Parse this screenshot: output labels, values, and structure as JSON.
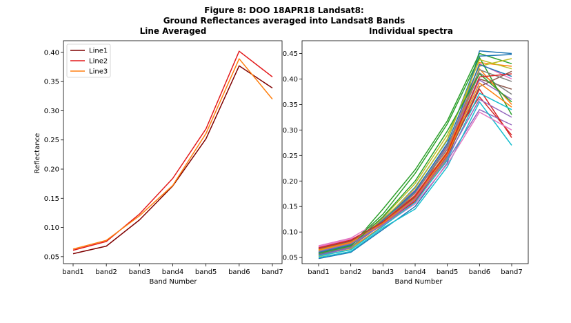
{
  "figure": {
    "title_line1": "Figure 8: DOO 18APR18  Landsat8:",
    "title_line2": "Ground Reflectances averaged into Landsat8 Bands"
  },
  "chart_data": [
    {
      "type": "line",
      "title": "Line Averaged",
      "xlabel": "Band Number",
      "ylabel": "Reflectance",
      "categories": [
        "band1",
        "band2",
        "band3",
        "band4",
        "band5",
        "band6",
        "band7"
      ],
      "ylim": [
        0.038,
        0.42
      ],
      "yticks": [
        0.05,
        0.1,
        0.15,
        0.2,
        0.25,
        0.3,
        0.35,
        0.4
      ],
      "ytick_labels": [
        "0.05",
        "0.10",
        "0.15",
        "0.20",
        "0.25",
        "0.30",
        "0.35",
        "0.40"
      ],
      "legend": "top-left",
      "grid": false,
      "series": [
        {
          "name": "Line1",
          "color": "#7f0000",
          "values": [
            0.055,
            0.068,
            0.113,
            0.171,
            0.252,
            0.377,
            0.339
          ]
        },
        {
          "name": "Line2",
          "color": "#e31a1c",
          "values": [
            0.061,
            0.076,
            0.123,
            0.184,
            0.269,
            0.402,
            0.358
          ]
        },
        {
          "name": "Line3",
          "color": "#ff7f0e",
          "values": [
            0.063,
            0.078,
            0.12,
            0.172,
            0.261,
            0.389,
            0.32
          ]
        }
      ]
    },
    {
      "type": "line",
      "title": "Individual spectra",
      "xlabel": "Band Number",
      "ylabel": "",
      "categories": [
        "band1",
        "band2",
        "band3",
        "band4",
        "band5",
        "band6",
        "band7"
      ],
      "ylim": [
        0.038,
        0.475
      ],
      "yticks": [
        0.05,
        0.1,
        0.15,
        0.2,
        0.25,
        0.3,
        0.35,
        0.4,
        0.45
      ],
      "ytick_labels": [
        "0.05",
        "0.10",
        "0.15",
        "0.20",
        "0.25",
        "0.30",
        "0.35",
        "0.40",
        "0.45"
      ],
      "legend": "none",
      "grid": false,
      "series": [
        {
          "color": "#1f77b4",
          "values": [
            0.048,
            0.06,
            0.105,
            0.15,
            0.235,
            0.455,
            0.45
          ]
        },
        {
          "color": "#ff7f0e",
          "values": [
            0.055,
            0.068,
            0.112,
            0.162,
            0.245,
            0.432,
            0.425
          ]
        },
        {
          "color": "#2ca02c",
          "values": [
            0.058,
            0.072,
            0.145,
            0.222,
            0.318,
            0.45,
            0.43
          ]
        },
        {
          "color": "#d62728",
          "values": [
            0.07,
            0.085,
            0.118,
            0.165,
            0.27,
            0.365,
            0.29
          ]
        },
        {
          "color": "#9467bd",
          "values": [
            0.066,
            0.08,
            0.115,
            0.16,
            0.24,
            0.34,
            0.31
          ]
        },
        {
          "color": "#8c564b",
          "values": [
            0.062,
            0.078,
            0.118,
            0.17,
            0.255,
            0.4,
            0.38
          ]
        },
        {
          "color": "#e377c2",
          "values": [
            0.073,
            0.088,
            0.125,
            0.175,
            0.265,
            0.43,
            0.4
          ]
        },
        {
          "color": "#7f7f7f",
          "values": [
            0.059,
            0.074,
            0.12,
            0.178,
            0.262,
            0.412,
            0.37
          ]
        },
        {
          "color": "#bcbd22",
          "values": [
            0.052,
            0.066,
            0.128,
            0.195,
            0.29,
            0.425,
            0.44
          ]
        },
        {
          "color": "#17becf",
          "values": [
            0.05,
            0.062,
            0.108,
            0.145,
            0.228,
            0.355,
            0.27
          ]
        },
        {
          "color": "#1f77b4",
          "values": [
            0.056,
            0.07,
            0.122,
            0.188,
            0.28,
            0.445,
            0.448
          ]
        },
        {
          "color": "#ff7f0e",
          "values": [
            0.064,
            0.079,
            0.121,
            0.172,
            0.258,
            0.42,
            0.35
          ]
        },
        {
          "color": "#2ca02c",
          "values": [
            0.061,
            0.076,
            0.135,
            0.215,
            0.312,
            0.442,
            0.33
          ]
        },
        {
          "color": "#d62728",
          "values": [
            0.068,
            0.083,
            0.117,
            0.16,
            0.25,
            0.38,
            0.285
          ]
        },
        {
          "color": "#9467bd",
          "values": [
            0.054,
            0.069,
            0.126,
            0.182,
            0.271,
            0.398,
            0.36
          ]
        },
        {
          "color": "#8c564b",
          "values": [
            0.067,
            0.082,
            0.119,
            0.168,
            0.248,
            0.385,
            0.415
          ]
        },
        {
          "color": "#e377c2",
          "values": [
            0.071,
            0.086,
            0.113,
            0.155,
            0.233,
            0.335,
            0.3
          ]
        },
        {
          "color": "#7f7f7f",
          "values": [
            0.057,
            0.071,
            0.116,
            0.177,
            0.268,
            0.418,
            0.395
          ]
        },
        {
          "color": "#bcbd22",
          "values": [
            0.063,
            0.077,
            0.124,
            0.186,
            0.282,
            0.438,
            0.42
          ]
        },
        {
          "color": "#17becf",
          "values": [
            0.053,
            0.065,
            0.111,
            0.158,
            0.242,
            0.372,
            0.34
          ]
        },
        {
          "color": "#1f77b4",
          "values": [
            0.06,
            0.075,
            0.123,
            0.18,
            0.274,
            0.428,
            0.405
          ]
        },
        {
          "color": "#ff7f0e",
          "values": [
            0.065,
            0.08,
            0.117,
            0.166,
            0.252,
            0.392,
            0.345
          ]
        },
        {
          "color": "#2ca02c",
          "values": [
            0.058,
            0.073,
            0.13,
            0.2,
            0.298,
            0.41,
            0.355
          ]
        },
        {
          "color": "#d62728",
          "values": [
            0.069,
            0.084,
            0.12,
            0.171,
            0.256,
            0.404,
            0.41
          ]
        },
        {
          "color": "#9467bd",
          "values": [
            0.062,
            0.077,
            0.114,
            0.164,
            0.247,
            0.36,
            0.325
          ]
        }
      ]
    }
  ]
}
